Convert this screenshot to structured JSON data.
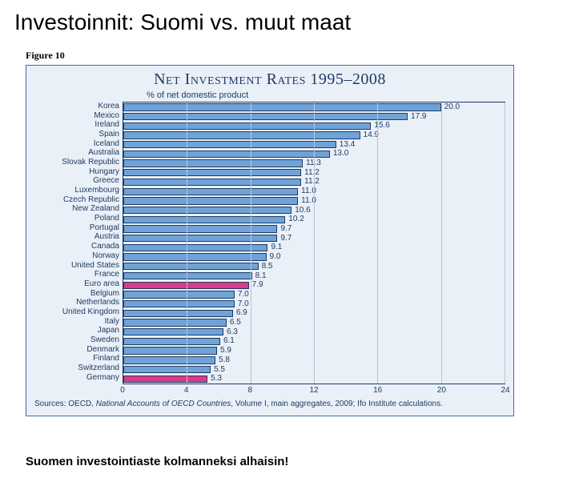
{
  "page_title": "Investoinnit: Suomi vs. muut maat",
  "figure_label": "Figure 10",
  "chart": {
    "type": "bar",
    "title": "Net Investment Rates 1995–2008",
    "subtitle": "% of net domestic product",
    "xlim": [
      0,
      24
    ],
    "xtick_step": 4,
    "xticks": [
      0,
      4,
      8,
      12,
      16,
      20,
      24
    ],
    "background_color": "#eaf0f8",
    "border_color": "#3a6ea5",
    "grid_color": "#b8c4d6",
    "text_color": "#1f3b63",
    "bar_default_color": "#6fa3d8",
    "bar_highlight_color": "#d93b8a",
    "bar_border_color": "#1f3b63",
    "label_fontsize": 10,
    "title_fontsize": 20,
    "rows": [
      {
        "label": "Korea",
        "value": 20.0,
        "highlight": false
      },
      {
        "label": "Mexico",
        "value": 17.9,
        "highlight": false
      },
      {
        "label": "Ireland",
        "value": 15.6,
        "highlight": false
      },
      {
        "label": "Spain",
        "value": 14.9,
        "highlight": false
      },
      {
        "label": "Iceland",
        "value": 13.4,
        "highlight": false
      },
      {
        "label": "Australia",
        "value": 13.0,
        "highlight": false
      },
      {
        "label": "Slovak Republic",
        "value": 11.3,
        "highlight": false
      },
      {
        "label": "Hungary",
        "value": 11.2,
        "highlight": false
      },
      {
        "label": "Greece",
        "value": 11.2,
        "highlight": false
      },
      {
        "label": "Luxembourg",
        "value": 11.0,
        "highlight": false
      },
      {
        "label": "Czech Republic",
        "value": 11.0,
        "highlight": false
      },
      {
        "label": "New Zealand",
        "value": 10.6,
        "highlight": false
      },
      {
        "label": "Poland",
        "value": 10.2,
        "highlight": false
      },
      {
        "label": "Portugal",
        "value": 9.7,
        "highlight": false
      },
      {
        "label": "Austria",
        "value": 9.7,
        "highlight": false
      },
      {
        "label": "Canada",
        "value": 9.1,
        "highlight": false
      },
      {
        "label": "Norway",
        "value": 9.0,
        "highlight": false
      },
      {
        "label": "United States",
        "value": 8.5,
        "highlight": false
      },
      {
        "label": "France",
        "value": 8.1,
        "highlight": false
      },
      {
        "label": "Euro area",
        "value": 7.9,
        "highlight": true
      },
      {
        "label": "Belgium",
        "value": 7.0,
        "highlight": false
      },
      {
        "label": "Netherlands",
        "value": 7.0,
        "highlight": false
      },
      {
        "label": "United Kingdom",
        "value": 6.9,
        "highlight": false
      },
      {
        "label": "Italy",
        "value": 6.5,
        "highlight": false
      },
      {
        "label": "Japan",
        "value": 6.3,
        "highlight": false
      },
      {
        "label": "Sweden",
        "value": 6.1,
        "highlight": false
      },
      {
        "label": "Denmark",
        "value": 5.9,
        "highlight": false
      },
      {
        "label": "Finland",
        "value": 5.8,
        "highlight": false
      },
      {
        "label": "Switzerland",
        "value": 5.5,
        "highlight": false
      },
      {
        "label": "Germany",
        "value": 5.3,
        "highlight": true
      }
    ],
    "sources_prefix": "Sources: OECD, ",
    "sources_italic": "National Accounts of OECD Countries",
    "sources_suffix": ", Volume I, main aggregates, 2009; Ifo Institute calculations."
  },
  "footer_note": "Suomen investointiaste  kolmanneksi alhaisin!"
}
